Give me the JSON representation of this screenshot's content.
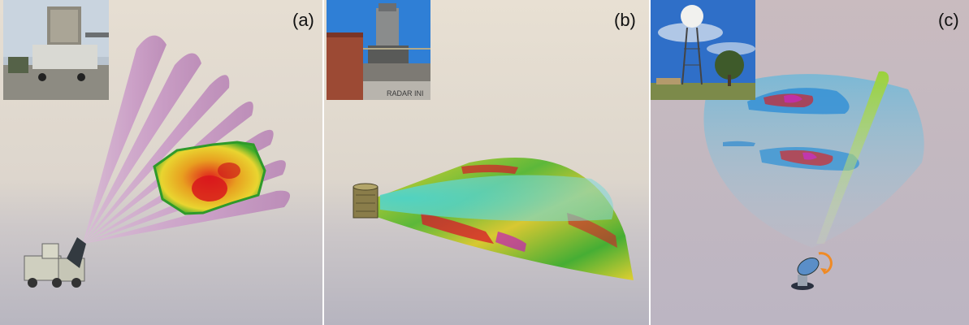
{
  "panels": [
    {
      "id": "a",
      "label": "(a)"
    },
    {
      "id": "b",
      "label": "(b)"
    },
    {
      "id": "c",
      "label": "(c)"
    }
  ],
  "photo_b": {
    "sign_text": "RADAR INI"
  },
  "icons": {
    "a": "radar-truck-icon",
    "b": "cylindrical-radar-icon",
    "c": "rotating-dish-icon"
  }
}
